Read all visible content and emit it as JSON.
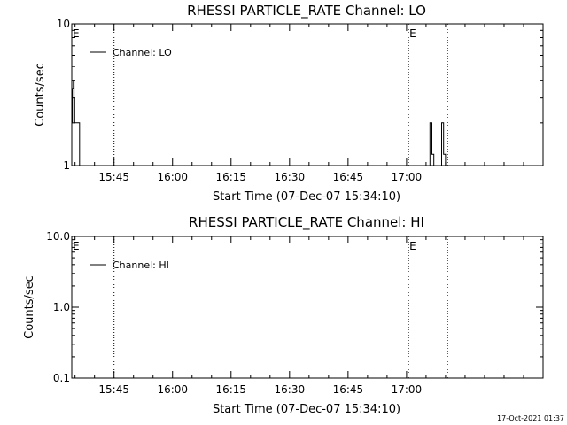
{
  "stamp": "17-Oct-2021 01:37",
  "chart_data": [
    {
      "type": "line",
      "title": "RHESSI PARTICLE_RATE Channel: LO",
      "xlabel": "Start Time (07-Dec-07 15:34:10)",
      "ylabel": "Counts/sec",
      "yscale": "log",
      "ylim": [
        1,
        10
      ],
      "yticks": [
        {
          "value": 1,
          "label": "1"
        },
        {
          "value": 10,
          "label": "10"
        }
      ],
      "xlim": [
        "15:34:10",
        "17:35:00"
      ],
      "xticks": [
        "15:45",
        "16:00",
        "16:15",
        "16:30",
        "16:45",
        "17:00"
      ],
      "xtick_minutes": [
        945,
        960,
        975,
        990,
        1005,
        1020
      ],
      "legend": {
        "label": "Channel: LO",
        "position": "top-left"
      },
      "markers": [
        {
          "time": "15:34:10",
          "label": "E"
        },
        {
          "time": "15:45:00",
          "label": ""
        },
        {
          "time": "17:00:30",
          "label": "E"
        },
        {
          "time": "17:10:30",
          "label": ""
        }
      ],
      "series": [
        {
          "name": "Channel: LO",
          "x": [
            "15:34:10",
            "15:34:20",
            "15:34:35",
            "15:34:45",
            "15:34:55",
            "15:35:05",
            "15:35:20",
            "15:36:00",
            "15:36:10",
            "15:36:20",
            "17:05:00",
            "17:05:30",
            "17:06:00",
            "17:06:30",
            "17:07:00",
            "17:07:40",
            "17:08:00",
            "17:08:30",
            "17:09:00",
            "17:09:30",
            "17:10:00",
            "17:10:30"
          ],
          "y": [
            2.0,
            3.5,
            4.0,
            3.0,
            2.0,
            2.0,
            2.0,
            2.0,
            1.0,
            1.0,
            1.0,
            1.0,
            2.0,
            1.2,
            1.0,
            1.0,
            1.0,
            1.0,
            2.0,
            1.2,
            1.0,
            1.0
          ]
        }
      ]
    },
    {
      "type": "line",
      "title": "RHESSI PARTICLE_RATE Channel: HI",
      "xlabel": "Start Time (07-Dec-07 15:34:10)",
      "ylabel": "Counts/sec",
      "yscale": "log",
      "ylim": [
        0.1,
        10
      ],
      "yticks": [
        {
          "value": 0.1,
          "label": "0.1"
        },
        {
          "value": 1,
          "label": "1.0"
        },
        {
          "value": 10,
          "label": "10.0"
        }
      ],
      "xlim": [
        "15:34:10",
        "17:35:00"
      ],
      "xticks": [
        "15:45",
        "16:00",
        "16:15",
        "16:30",
        "16:45",
        "17:00"
      ],
      "xtick_minutes": [
        945,
        960,
        975,
        990,
        1005,
        1020
      ],
      "legend": {
        "label": "Channel: HI",
        "position": "top-left"
      },
      "markers": [
        {
          "time": "15:34:10",
          "label": "E"
        },
        {
          "time": "15:45:00",
          "label": ""
        },
        {
          "time": "17:00:30",
          "label": "E"
        },
        {
          "time": "17:10:30",
          "label": ""
        }
      ],
      "series": [
        {
          "name": "Channel: HI",
          "x": [],
          "y": []
        }
      ]
    }
  ]
}
